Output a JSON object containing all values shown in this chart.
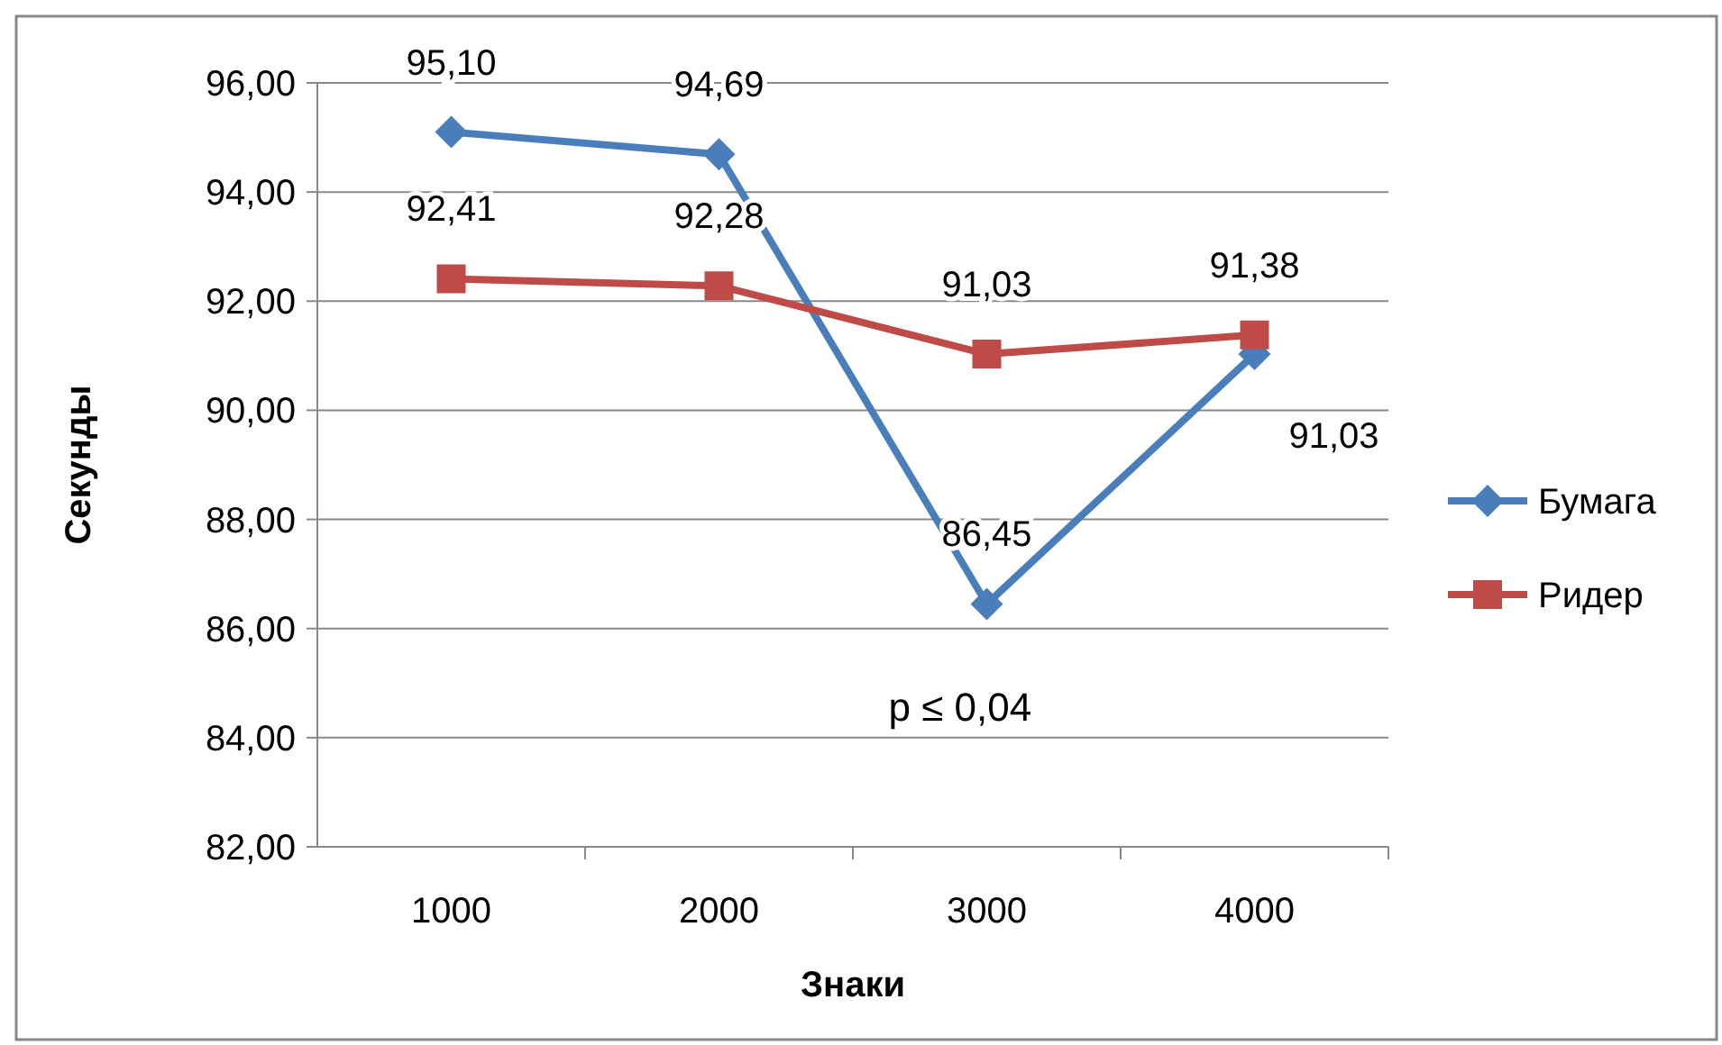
{
  "chart_data": {
    "type": "line",
    "xlabel": "Знаки",
    "ylabel": "Секунды",
    "categories": [
      "1000",
      "2000",
      "3000",
      "4000"
    ],
    "series": [
      {
        "name": "Бумага",
        "color": "#4a7ebb",
        "marker": "diamond",
        "values": [
          95.1,
          94.69,
          86.45,
          91.03
        ],
        "value_labels": [
          "95,10",
          "94,69",
          "86,45",
          "91,03"
        ]
      },
      {
        "name": "Ридер",
        "color": "#be4b48",
        "marker": "square",
        "values": [
          92.41,
          92.28,
          91.03,
          91.38
        ],
        "value_labels": [
          "92,41",
          "92,28",
          "91,03",
          "91,38"
        ]
      }
    ],
    "ylim": [
      82,
      96
    ],
    "yticks": [
      {
        "value": 82,
        "label": "82,00"
      },
      {
        "value": 84,
        "label": "84,00"
      },
      {
        "value": 86,
        "label": "86,00"
      },
      {
        "value": 88,
        "label": "88,00"
      },
      {
        "value": 90,
        "label": "90,00"
      },
      {
        "value": 92,
        "label": "92,00"
      },
      {
        "value": 94,
        "label": "94,00"
      },
      {
        "value": 96,
        "label": "96,00"
      }
    ],
    "grid": "y",
    "legend": "right",
    "annotations": [
      "p ≤ 0,04"
    ]
  }
}
